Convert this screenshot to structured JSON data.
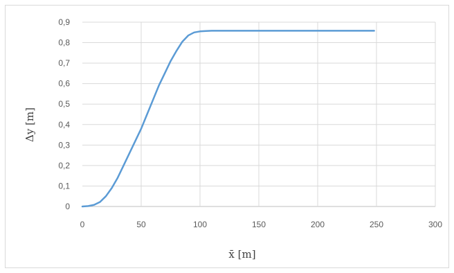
{
  "chart_data": {
    "type": "line",
    "xlabel": "x̄ [m]",
    "ylabel": "Δy [m]",
    "xlim": [
      0,
      300
    ],
    "ylim": [
      0,
      0.9
    ],
    "x_ticks": [
      "0",
      "50",
      "100",
      "150",
      "200",
      "250",
      "300"
    ],
    "y_ticks": [
      "0",
      "0,1",
      "0,2",
      "0,3",
      "0,4",
      "0,5",
      "0,6",
      "0,7",
      "0,8",
      "0,9"
    ],
    "grid": true,
    "legend": "none",
    "series": [
      {
        "color": "#5b9bd5",
        "x": [
          0,
          5,
          10,
          15,
          20,
          25,
          30,
          35,
          40,
          45,
          50,
          55,
          60,
          65,
          70,
          75,
          80,
          85,
          90,
          95,
          100,
          105,
          110,
          120,
          150,
          200,
          248
        ],
        "y": [
          0,
          0.002,
          0.008,
          0.022,
          0.05,
          0.09,
          0.14,
          0.2,
          0.26,
          0.32,
          0.38,
          0.45,
          0.52,
          0.59,
          0.65,
          0.71,
          0.76,
          0.805,
          0.835,
          0.85,
          0.855,
          0.857,
          0.858,
          0.858,
          0.858,
          0.858,
          0.858
        ]
      }
    ]
  }
}
